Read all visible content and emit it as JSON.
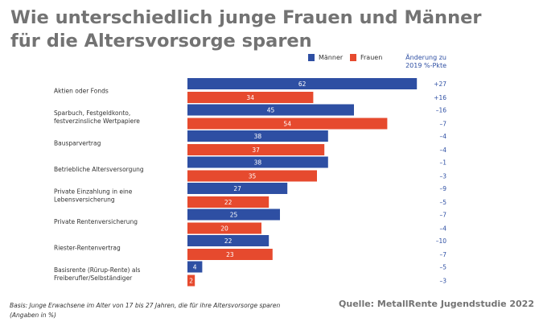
{
  "title_line1": "Wie unterschiedlich junge Frauen und Männer",
  "title_line2": "für die Altersvorsorge sparen",
  "legend": {
    "maenner": "Männer",
    "frauen": "Frauen"
  },
  "change_header": {
    "line1": "Änderung zu",
    "line2": "2019 %-Pkte"
  },
  "colors": {
    "maenner": "#2e4fa3",
    "frauen": "#e64a2e",
    "change_text": "#2e4fa3"
  },
  "footnote": {
    "line1": "Basis: Junge Erwachsene im Alter von 17 bis 27 Jahren, die für ihre Altersvorsorge sparen",
    "line2": "(Angaben in %)"
  },
  "source": "Quelle: MetallRente Jugendstudie 2022",
  "chart_data": {
    "type": "bar",
    "orientation": "horizontal",
    "categories": [
      [
        "Aktien oder Fonds"
      ],
      [
        "Sparbuch, Festgeldkonto,",
        "festverzinsliche Wertpapiere"
      ],
      [
        "Bausparvertrag"
      ],
      [
        "Betriebliche Altersversorgung"
      ],
      [
        "Private Einzahlung in eine",
        "Lebensversicherung"
      ],
      [
        "Private Rentenversicherung"
      ],
      [
        "Riester-Rentenvertrag"
      ],
      [
        "Basisrente (Rürup-Rente) als",
        "Freiberufler/Selbständiger"
      ]
    ],
    "series": [
      {
        "name": "Männer",
        "values": [
          62,
          45,
          38,
          38,
          27,
          25,
          22,
          4
        ],
        "changes": [
          "+27",
          "–16",
          "–4",
          "–1",
          "–9",
          "–7",
          "–10",
          "–5"
        ]
      },
      {
        "name": "Frauen",
        "values": [
          34,
          54,
          37,
          35,
          22,
          20,
          23,
          2
        ],
        "changes": [
          "+16",
          "–7",
          "–4",
          "–3",
          "–5",
          "–4",
          "–7",
          "–3"
        ]
      }
    ],
    "xlim": [
      0,
      66
    ],
    "grid": false,
    "legend_position": "top-right"
  }
}
